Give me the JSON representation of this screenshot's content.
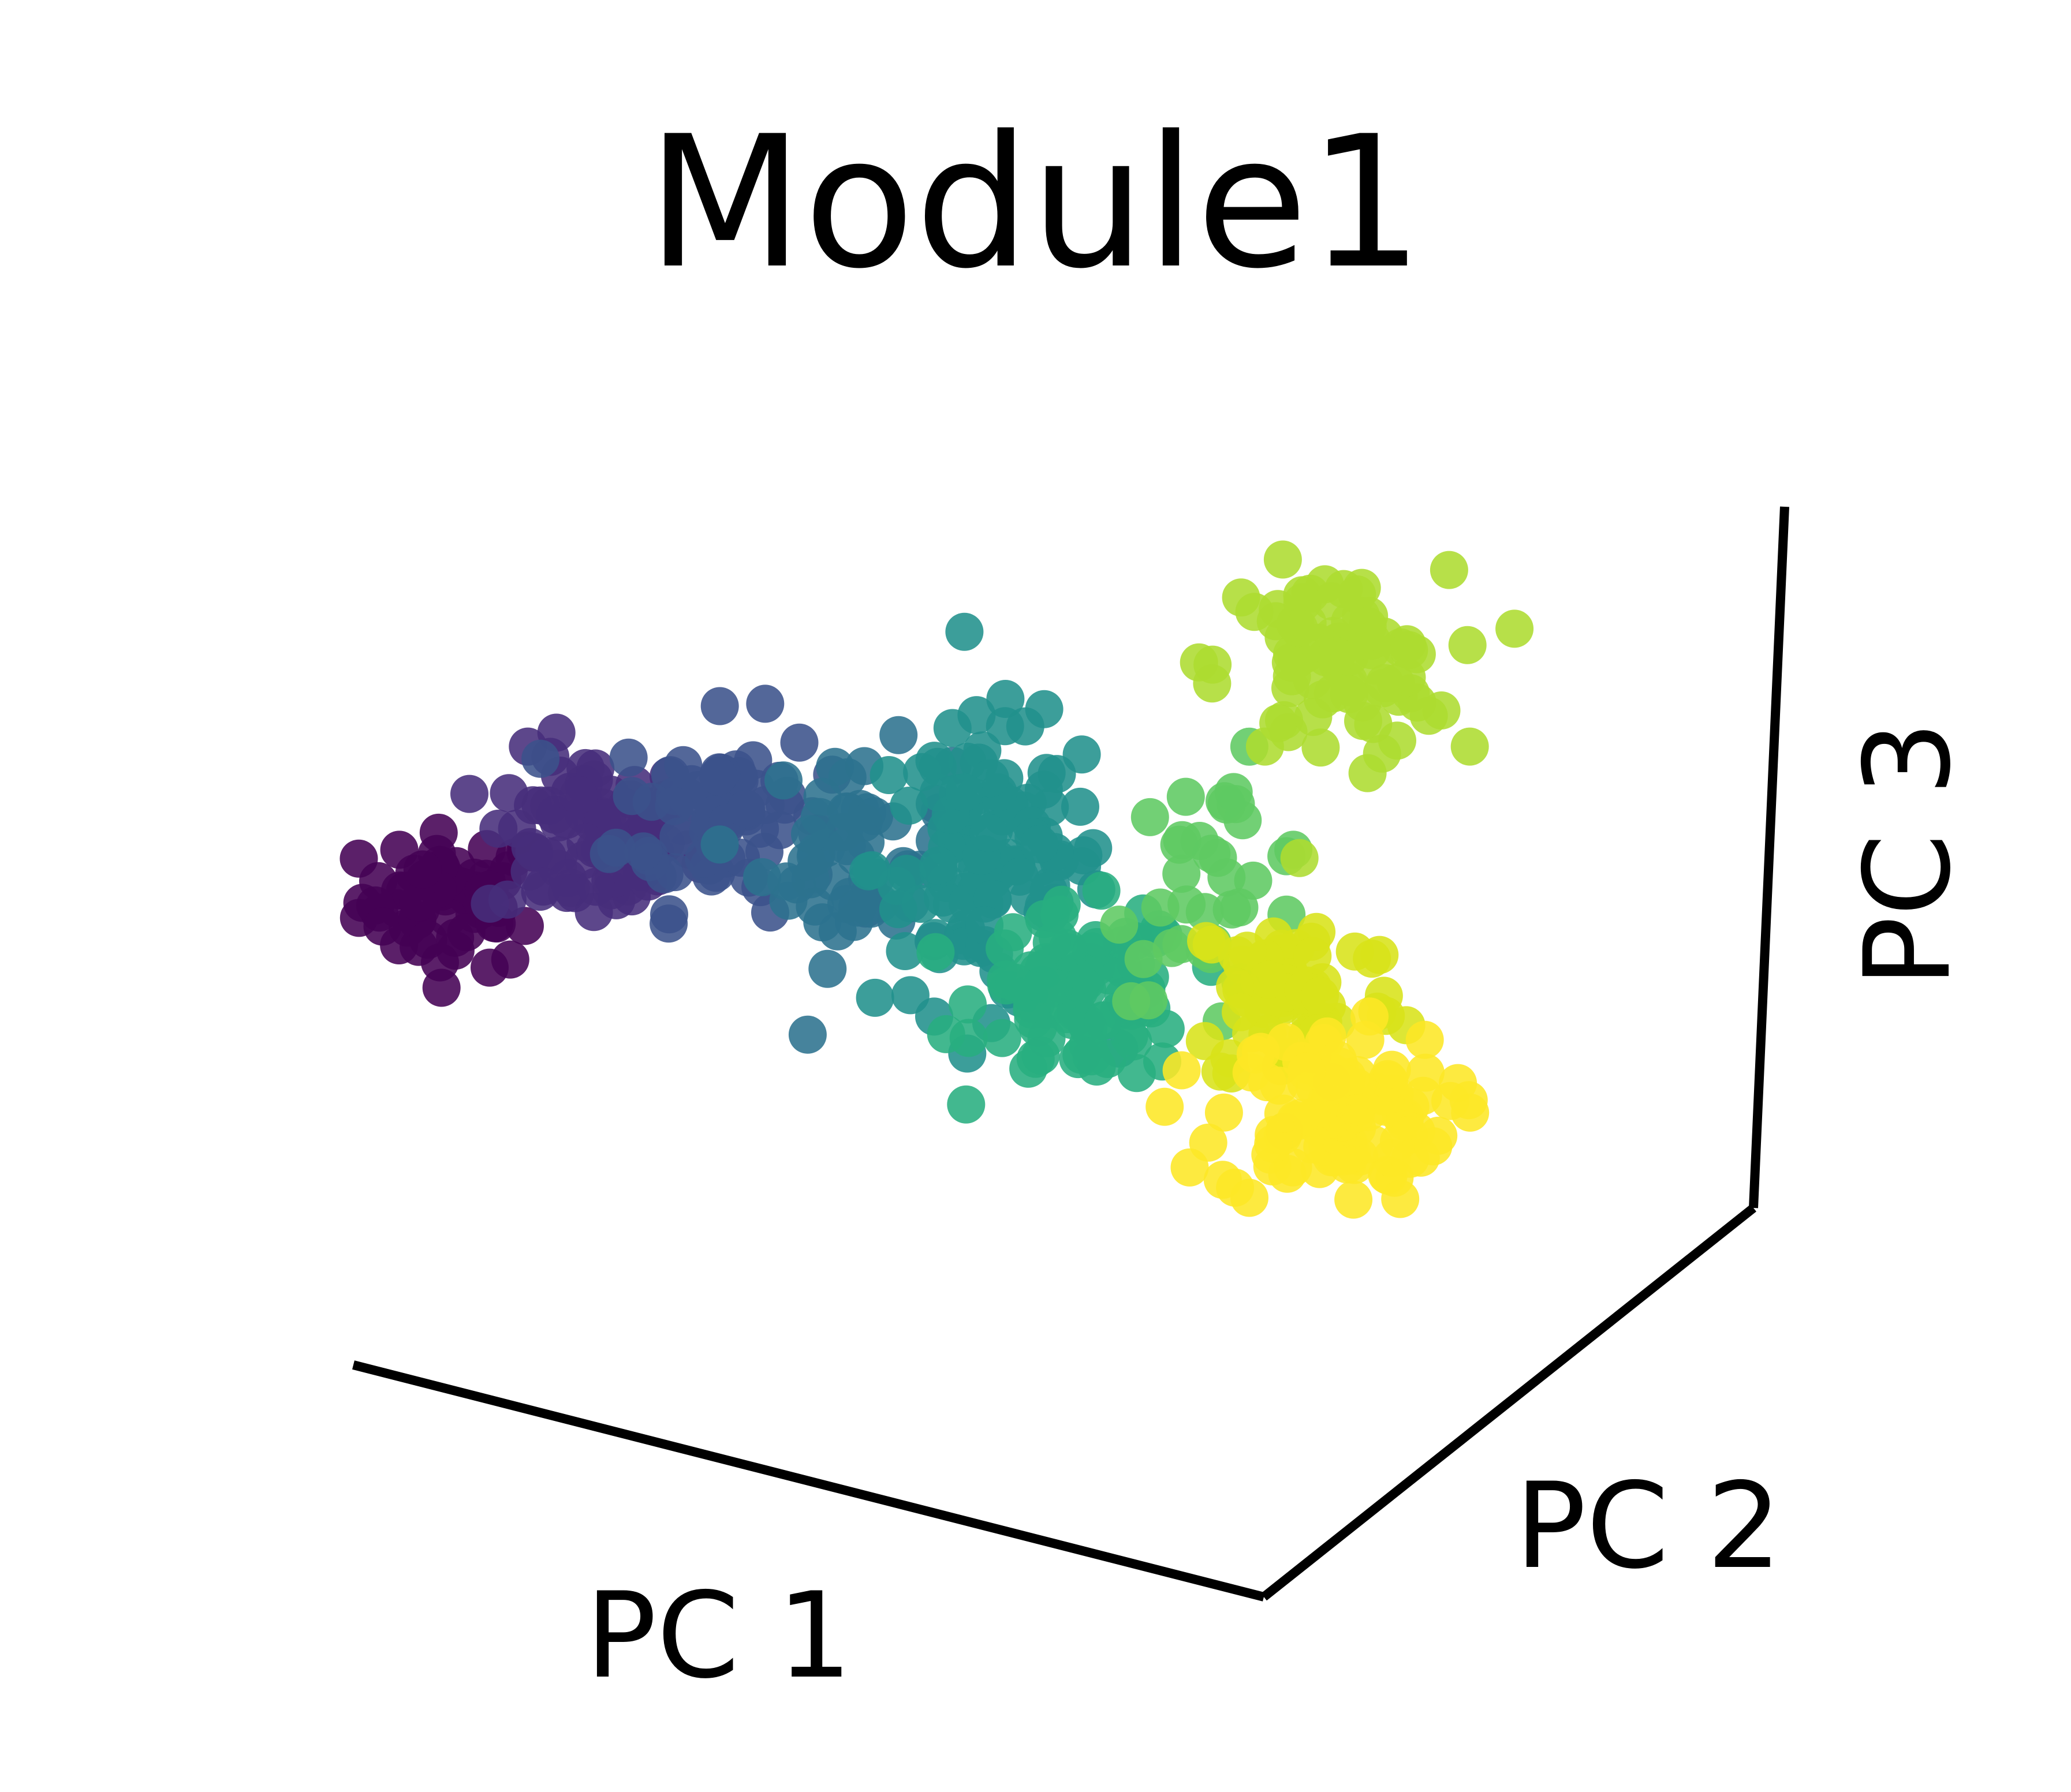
{
  "chart_data": {
    "type": "scatter",
    "projection": "3d",
    "title": "Module1",
    "xlabel": "PC 1",
    "ylabel": "PC 2",
    "zlabel": "PC 3",
    "colormap": "viridis",
    "grid": false,
    "tick_labels": false,
    "legend": false,
    "series": [
      {
        "cluster": 1,
        "color": "#440154",
        "approx_center": {
          "pc1": -3.0,
          "pc3": 0.0
        },
        "spread": {
          "pc1": 0.45,
          "pc3": 0.35
        },
        "points": 60
      },
      {
        "cluster": 2,
        "color": "#472d7b",
        "approx_center": {
          "pc1": -2.3,
          "pc3": 0.35
        },
        "spread": {
          "pc1": 0.5,
          "pc3": 0.45
        },
        "points": 85
      },
      {
        "cluster": 3,
        "color": "#3b528b",
        "approx_center": {
          "pc1": -1.6,
          "pc3": 0.5
        },
        "spread": {
          "pc1": 0.5,
          "pc3": 0.5
        },
        "points": 75
      },
      {
        "cluster": 4,
        "color": "#2c728e",
        "approx_center": {
          "pc1": -0.9,
          "pc3": 0.25
        },
        "spread": {
          "pc1": 0.45,
          "pc3": 0.55
        },
        "points": 55
      },
      {
        "cluster": 5,
        "color": "#21918c",
        "approx_center": {
          "pc1": -0.2,
          "pc3": 0.2
        },
        "spread": {
          "pc1": 0.55,
          "pc3": 0.75
        },
        "points": 120
      },
      {
        "cluster": 6,
        "color": "#28ae80",
        "approx_center": {
          "pc1": 0.3,
          "pc3": -0.55
        },
        "spread": {
          "pc1": 0.5,
          "pc3": 0.45
        },
        "points": 90
      },
      {
        "cluster": 7,
        "color": "#5ec962",
        "approx_center": {
          "pc1": 1.0,
          "pc3": 0.1
        },
        "spread": {
          "pc1": 0.5,
          "pc3": 0.6
        },
        "points": 35
      },
      {
        "cluster": 8,
        "color": "#addc30",
        "approx_center": {
          "pc1": 1.6,
          "pc3": 1.35
        },
        "spread": {
          "pc1": 0.55,
          "pc3": 0.5
        },
        "points": 80
      },
      {
        "cluster": 9,
        "color": "#d8e219",
        "approx_center": {
          "pc1": 1.4,
          "pc3": -0.55
        },
        "spread": {
          "pc1": 0.5,
          "pc3": 0.5
        },
        "points": 70
      },
      {
        "cluster": 10,
        "color": "#fde725",
        "approx_center": {
          "pc1": 1.6,
          "pc3": -1.25
        },
        "spread": {
          "pc1": 0.55,
          "pc3": 0.45
        },
        "points": 110
      }
    ]
  }
}
